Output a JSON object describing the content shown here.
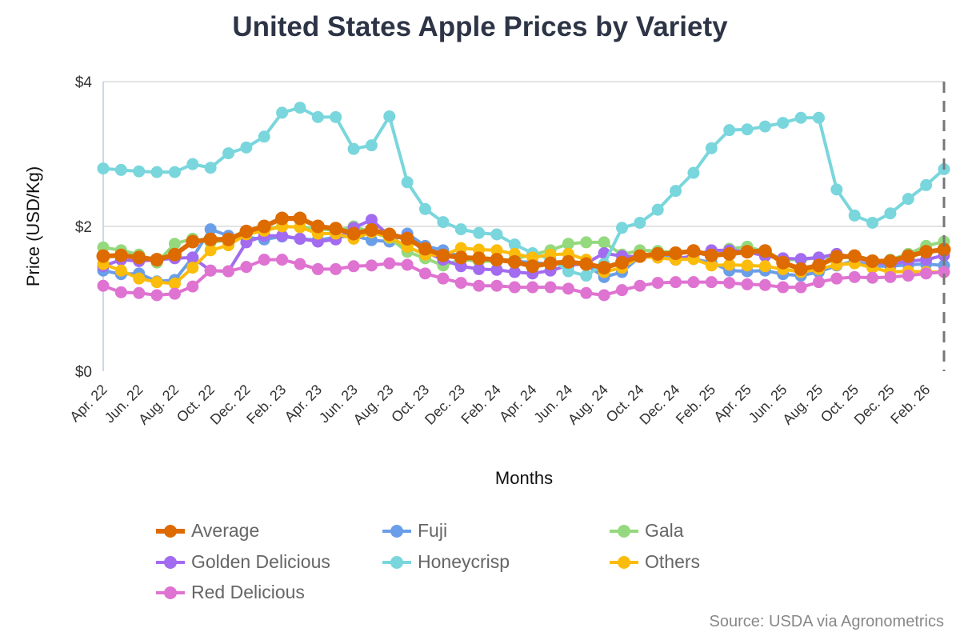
{
  "title": "United States Apple Prices by Variety",
  "source": "Source: USDA via Agronometrics",
  "chart_data": {
    "type": "line",
    "title": "United States Apple Prices by Variety",
    "xlabel": "Months",
    "ylabel": "Price (USD/Kg)",
    "ylim": [
      0,
      4
    ],
    "yticks": [
      "$0",
      "$2",
      "$4"
    ],
    "ytick_values": [
      0,
      2,
      4
    ],
    "grid": true,
    "legend_position": "bottom",
    "categories": [
      "Apr. 22",
      "May. 22",
      "Jun. 22",
      "Jul. 22",
      "Aug. 22",
      "Sep. 22",
      "Oct. 22",
      "Nov. 22",
      "Dec. 22",
      "Jan. 23",
      "Feb. 23",
      "Mar. 23",
      "Apr. 23",
      "May. 23",
      "Jun. 23",
      "Jul. 23",
      "Aug. 23",
      "Sep. 23",
      "Oct. 23",
      "Nov. 23",
      "Dec. 23",
      "Jan. 24",
      "Feb. 24",
      "Mar. 24",
      "Apr. 24",
      "May. 24",
      "Jun. 24",
      "Jul. 24",
      "Aug. 24",
      "Sep. 24",
      "Oct. 24",
      "Nov. 24",
      "Dec. 24",
      "Jan. 25",
      "Feb. 25",
      "Mar. 25",
      "Apr. 25",
      "May. 25",
      "Jun. 25",
      "Jul. 25",
      "Aug. 25",
      "Sep. 25",
      "Oct. 25",
      "Nov. 25",
      "Dec. 25",
      "Jan. 26",
      "Feb. 26",
      "Mar. 26"
    ],
    "xtick_labels": [
      "Apr. 22",
      "Jun. 22",
      "Aug. 22",
      "Oct. 22",
      "Dec. 22",
      "Feb. 23",
      "Apr. 23",
      "Jun. 23",
      "Aug. 23",
      "Oct. 23",
      "Dec. 23",
      "Feb. 24",
      "Apr. 24",
      "Jun. 24",
      "Aug. 24",
      "Oct. 24",
      "Dec. 24",
      "Feb. 25",
      "Apr. 25",
      "Jun. 25",
      "Aug. 25",
      "Oct. 25",
      "Dec. 25",
      "Feb. 26"
    ],
    "marker_line": "Mar. 26",
    "series": [
      {
        "name": "Fuji",
        "color": "#6b9ee8",
        "values": [
          1.39,
          1.34,
          1.35,
          1.24,
          1.26,
          1.57,
          1.96,
          1.87,
          1.85,
          1.82,
          1.86,
          1.83,
          1.81,
          1.85,
          1.87,
          1.81,
          1.79,
          1.9,
          1.73,
          1.67,
          1.58,
          1.55,
          1.54,
          1.52,
          1.5,
          1.48,
          1.48,
          1.47,
          1.3,
          1.37,
          1.58,
          1.6,
          1.58,
          1.55,
          1.5,
          1.39,
          1.38,
          1.39,
          1.34,
          1.32,
          1.37,
          1.46,
          1.52,
          1.45,
          1.45,
          1.47,
          1.48,
          1.46
        ]
      },
      {
        "name": "Gala",
        "color": "#95d97e",
        "values": [
          1.71,
          1.67,
          1.61,
          1.5,
          1.76,
          1.83,
          1.78,
          1.81,
          1.9,
          1.96,
          2.0,
          1.99,
          1.97,
          1.94,
          2.0,
          1.92,
          1.84,
          1.65,
          1.56,
          1.46,
          1.54,
          1.52,
          1.52,
          1.55,
          1.61,
          1.67,
          1.76,
          1.78,
          1.78,
          1.61,
          1.67,
          1.66,
          1.64,
          1.65,
          1.63,
          1.69,
          1.72,
          1.65,
          1.54,
          1.54,
          1.57,
          1.57,
          1.57,
          1.52,
          1.54,
          1.62,
          1.73,
          1.79
        ]
      },
      {
        "name": "Golden Delicious",
        "color": "#a26bf0",
        "values": [
          1.45,
          1.54,
          1.52,
          1.54,
          1.56,
          1.57,
          1.39,
          1.38,
          1.78,
          1.87,
          1.87,
          1.83,
          1.79,
          1.82,
          1.98,
          2.09,
          1.87,
          1.85,
          1.65,
          1.54,
          1.45,
          1.41,
          1.4,
          1.37,
          1.35,
          1.39,
          1.46,
          1.49,
          1.63,
          1.59,
          1.58,
          1.57,
          1.54,
          1.6,
          1.67,
          1.67,
          1.65,
          1.59,
          1.56,
          1.55,
          1.57,
          1.62,
          1.57,
          1.5,
          1.48,
          1.52,
          1.54,
          1.6
        ]
      },
      {
        "name": "Honeycrisp",
        "color": "#79d6dc",
        "values": [
          2.8,
          2.78,
          2.76,
          2.75,
          2.75,
          2.86,
          2.81,
          3.01,
          3.09,
          3.24,
          3.57,
          3.64,
          3.51,
          3.51,
          3.07,
          3.12,
          3.52,
          2.61,
          2.24,
          2.06,
          1.96,
          1.91,
          1.89,
          1.75,
          1.63,
          1.55,
          1.38,
          1.32,
          1.48,
          1.98,
          2.05,
          2.23,
          2.49,
          2.74,
          3.08,
          3.33,
          3.34,
          3.38,
          3.43,
          3.5,
          3.5,
          2.51,
          2.15,
          2.05,
          2.18,
          2.38,
          2.57,
          2.79
        ]
      },
      {
        "name": "Others",
        "color": "#fbbc0c",
        "values": [
          1.48,
          1.39,
          1.28,
          1.23,
          1.21,
          1.43,
          1.67,
          1.74,
          1.89,
          1.94,
          2.0,
          1.99,
          1.9,
          1.9,
          1.83,
          1.92,
          1.85,
          1.72,
          1.61,
          1.6,
          1.7,
          1.68,
          1.67,
          1.62,
          1.57,
          1.61,
          1.62,
          1.54,
          1.37,
          1.43,
          1.58,
          1.57,
          1.54,
          1.55,
          1.46,
          1.47,
          1.46,
          1.45,
          1.41,
          1.37,
          1.41,
          1.47,
          1.49,
          1.43,
          1.37,
          1.38,
          1.37,
          1.37
        ]
      },
      {
        "name": "Red Delicious",
        "color": "#df73d1",
        "values": [
          1.18,
          1.09,
          1.08,
          1.05,
          1.07,
          1.17,
          1.39,
          1.38,
          1.44,
          1.54,
          1.54,
          1.48,
          1.41,
          1.41,
          1.45,
          1.46,
          1.49,
          1.47,
          1.35,
          1.28,
          1.22,
          1.18,
          1.18,
          1.16,
          1.16,
          1.16,
          1.14,
          1.08,
          1.05,
          1.12,
          1.18,
          1.22,
          1.23,
          1.23,
          1.23,
          1.22,
          1.2,
          1.19,
          1.16,
          1.16,
          1.23,
          1.28,
          1.3,
          1.29,
          1.3,
          1.32,
          1.35,
          1.37
        ]
      },
      {
        "name": "Average",
        "color": "#dd6b00",
        "values": [
          1.59,
          1.6,
          1.57,
          1.54,
          1.61,
          1.79,
          1.82,
          1.82,
          1.93,
          2.0,
          2.11,
          2.11,
          2.0,
          1.97,
          1.9,
          1.95,
          1.89,
          1.83,
          1.69,
          1.6,
          1.57,
          1.56,
          1.54,
          1.51,
          1.45,
          1.49,
          1.51,
          1.48,
          1.43,
          1.5,
          1.59,
          1.62,
          1.63,
          1.66,
          1.6,
          1.62,
          1.65,
          1.66,
          1.5,
          1.41,
          1.46,
          1.58,
          1.59,
          1.52,
          1.52,
          1.59,
          1.65,
          1.68
        ]
      }
    ],
    "legend_order": [
      "Average",
      "Fuji",
      "Gala",
      "Golden Delicious",
      "Honeycrisp",
      "Others",
      "Red Delicious"
    ]
  }
}
